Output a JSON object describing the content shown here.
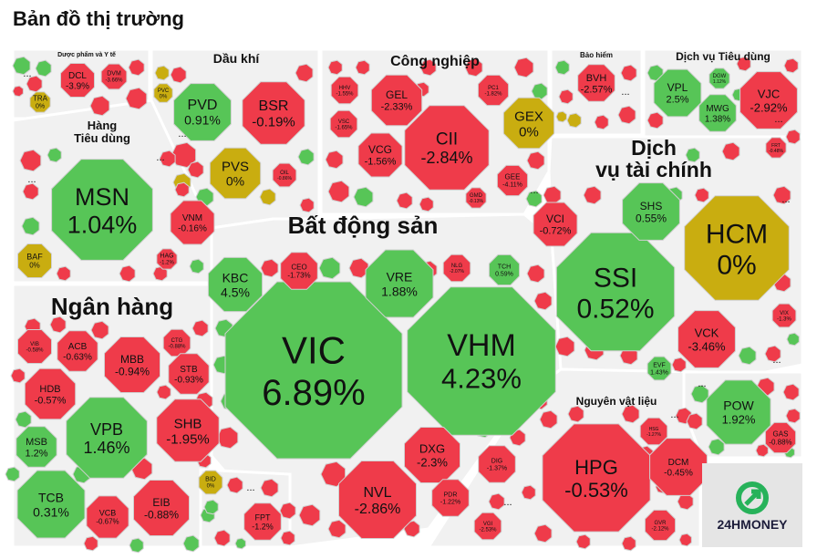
{
  "page_title": "Bản đồ thị trường",
  "colors": {
    "green": "#57c557",
    "red": "#ef3b4a",
    "yellow": "#c9ad10",
    "bg": "#f1f1f1"
  },
  "brand": {
    "name": "24HMONEY"
  },
  "chart_data": {
    "type": "treemap",
    "value_unit": "%",
    "sectors": [
      {
        "id": "duoc",
        "name": "Dược phẩm và Y tế",
        "size": "tiny",
        "stocks": [
          {
            "ticker": "DCL",
            "change": -3.9,
            "label": "-3.9%"
          },
          {
            "ticker": "DVM",
            "change": -3.66,
            "label": "-3.66%"
          },
          {
            "ticker": "TRA",
            "change": 0,
            "label": "0%"
          }
        ]
      },
      {
        "id": "daukhi",
        "name": "Dầu khí",
        "size": "medium",
        "stocks": [
          {
            "ticker": "PVD",
            "change": 0.91,
            "label": "0.91%"
          },
          {
            "ticker": "BSR",
            "change": -0.19,
            "label": "-0.19%"
          },
          {
            "ticker": "PVS",
            "change": 0,
            "label": "0%"
          },
          {
            "ticker": "PVC",
            "change": 0,
            "label": "0%"
          },
          {
            "ticker": "OIL",
            "change": -0.86,
            "label": "-0.86%"
          }
        ]
      },
      {
        "id": "congnghiep",
        "name": "Công nghiệp",
        "size": "medium",
        "stocks": [
          {
            "ticker": "HHV",
            "change": -1.55,
            "label": "-1.55%"
          },
          {
            "ticker": "GEL",
            "change": -2.33,
            "label": "-2.33%"
          },
          {
            "ticker": "PC1",
            "change": -1.82,
            "label": "-1.82%"
          },
          {
            "ticker": "VSC",
            "change": -1.65,
            "label": "-1.65%"
          },
          {
            "ticker": "CII",
            "change": -2.84,
            "label": "-2.84%"
          },
          {
            "ticker": "GEX",
            "change": 0,
            "label": "0%"
          },
          {
            "ticker": "VCG",
            "change": -1.56,
            "label": "-1.56%"
          },
          {
            "ticker": "GEE",
            "change": -4.11,
            "label": "-4.11%"
          },
          {
            "ticker": "GMD",
            "change": -0.13,
            "label": "-0.13%"
          }
        ]
      },
      {
        "id": "baohiem",
        "name": "Bảo hiểm",
        "size": "tiny",
        "stocks": [
          {
            "ticker": "BVH",
            "change": -2.57,
            "label": "-2.57%"
          }
        ]
      },
      {
        "id": "dvtd",
        "name": "Dịch vụ Tiêu dùng",
        "size": "small",
        "stocks": [
          {
            "ticker": "VPL",
            "change": 2.5,
            "label": "2.5%"
          },
          {
            "ticker": "DGW",
            "change": 1.12,
            "label": "1.12%"
          },
          {
            "ticker": "MWG",
            "change": 1.38,
            "label": "1.38%"
          },
          {
            "ticker": "VJC",
            "change": -2.92,
            "label": "-2.92%"
          },
          {
            "ticker": "FRT",
            "change": -0.48,
            "label": "-0.48%"
          }
        ]
      },
      {
        "id": "hangtd",
        "name": "Hàng\nTiêu dùng",
        "size": "medium",
        "stocks": [
          {
            "ticker": "MSN",
            "change": 1.04,
            "label": "1.04%"
          },
          {
            "ticker": "VNM",
            "change": -0.16,
            "label": "-0.16%"
          },
          {
            "ticker": "BAF",
            "change": 0,
            "label": "0%"
          },
          {
            "ticker": "HAG",
            "change": -1.2,
            "label": "-1.2%"
          }
        ]
      },
      {
        "id": "bds",
        "name": "Bất động sản",
        "size": "large",
        "stocks": [
          {
            "ticker": "VIC",
            "change": 6.89,
            "label": "6.89%"
          },
          {
            "ticker": "VHM",
            "change": 4.23,
            "label": "4.23%"
          },
          {
            "ticker": "KBC",
            "change": 4.5,
            "label": "4.5%"
          },
          {
            "ticker": "VRE",
            "change": 1.88,
            "label": "1.88%"
          },
          {
            "ticker": "CEO",
            "change": -1.73,
            "label": "-1.73%"
          },
          {
            "ticker": "NLG",
            "change": -2.07,
            "label": "-2.07%"
          },
          {
            "ticker": "TCH",
            "change": 0.59,
            "label": "0.59%"
          },
          {
            "ticker": "NVL",
            "change": -2.86,
            "label": "-2.86%"
          },
          {
            "ticker": "DXG",
            "change": -2.3,
            "label": "-2.3%"
          },
          {
            "ticker": "DIG",
            "change": -1.37,
            "label": "-1.37%"
          },
          {
            "ticker": "PDR",
            "change": -1.22,
            "label": "-1.22%"
          },
          {
            "ticker": "VGI",
            "change": -2.53,
            "label": "-2.53%"
          }
        ]
      },
      {
        "id": "dvtc",
        "name": "Dịch\nvụ tài chính",
        "size": "large",
        "stocks": [
          {
            "ticker": "HCM",
            "change": 0,
            "label": "0%"
          },
          {
            "ticker": "SSI",
            "change": 0.52,
            "label": "0.52%"
          },
          {
            "ticker": "SHS",
            "change": 0.55,
            "label": "0.55%"
          },
          {
            "ticker": "VCI",
            "change": -0.72,
            "label": "-0.72%"
          },
          {
            "ticker": "VCK",
            "change": -3.46,
            "label": "-3.46%"
          },
          {
            "ticker": "EVF",
            "change": 1.43,
            "label": "1.43%"
          },
          {
            "ticker": "VIX",
            "change": -1.3,
            "label": "-1.3%"
          }
        ]
      },
      {
        "id": "nganhang",
        "name": "Ngân hàng",
        "size": "large",
        "stocks": [
          {
            "ticker": "VIB",
            "change": -0.58,
            "label": "-0.58%"
          },
          {
            "ticker": "ACB",
            "change": -0.63,
            "label": "-0.63%"
          },
          {
            "ticker": "MBB",
            "change": -0.94,
            "label": "-0.94%"
          },
          {
            "ticker": "CTG",
            "change": -0.88,
            "label": "-0.88%"
          },
          {
            "ticker": "STB",
            "change": -0.93,
            "label": "-0.93%"
          },
          {
            "ticker": "HDB",
            "change": -0.57,
            "label": "-0.57%"
          },
          {
            "ticker": "VPB",
            "change": 1.46,
            "label": "1.46%"
          },
          {
            "ticker": "SHB",
            "change": -1.95,
            "label": "-1.95%"
          },
          {
            "ticker": "MSB",
            "change": 1.2,
            "label": "1.2%"
          },
          {
            "ticker": "TCB",
            "change": 0.31,
            "label": "0.31%"
          },
          {
            "ticker": "VCB",
            "change": -0.67,
            "label": "-0.67%"
          },
          {
            "ticker": "EIB",
            "change": -0.88,
            "label": "-0.88%"
          },
          {
            "ticker": "BID",
            "change": 0,
            "label": "0%"
          }
        ]
      },
      {
        "id": "cntt",
        "name": "",
        "size": "small",
        "stocks": [
          {
            "ticker": "FPT",
            "change": -1.2,
            "label": "-1.2%"
          }
        ]
      },
      {
        "id": "nvl",
        "name": "Nguyên vật liệu",
        "size": "medium",
        "stocks": [
          {
            "ticker": "HPG",
            "change": -0.53,
            "label": "-0.53%"
          },
          {
            "ticker": "DCM",
            "change": -0.45,
            "label": "-0.45%"
          },
          {
            "ticker": "HSG",
            "change": -1.27,
            "label": "-1.27%"
          },
          {
            "ticker": "GVR",
            "change": -2.12,
            "label": "-2.12%"
          }
        ]
      },
      {
        "id": "tienich",
        "name": "",
        "size": "small",
        "stocks": [
          {
            "ticker": "POW",
            "change": 1.92,
            "label": "1.92%"
          },
          {
            "ticker": "GAS",
            "change": -0.88,
            "label": "-0.88%"
          }
        ]
      }
    ]
  }
}
